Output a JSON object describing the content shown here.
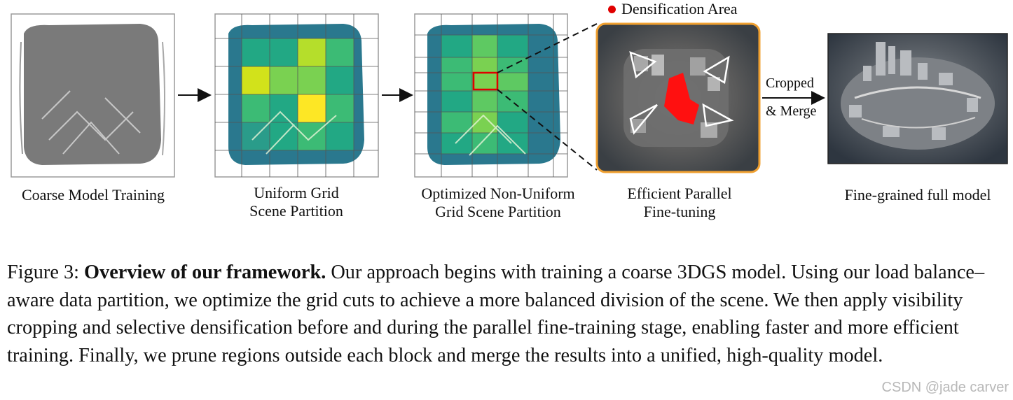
{
  "figure": {
    "legend_label": "Densification Area",
    "legend_color": "#e00000",
    "panels": [
      {
        "caption_lines": [
          "Coarse Model Training"
        ]
      },
      {
        "caption_lines": [
          "Uniform Grid",
          "Scene Partition"
        ]
      },
      {
        "caption_lines": [
          "Optimized Non-Uniform",
          "Grid Scene Partition"
        ]
      },
      {
        "caption_lines": [
          "Efficient Parallel",
          "Fine-tuning"
        ]
      },
      {
        "caption_lines": [
          "Fine-grained full model"
        ]
      }
    ],
    "merge_arrow_label_lines": [
      "Cropped",
      "& Merge"
    ],
    "colors": {
      "coarse_gray": "#7a7a7a",
      "viridis_dark": "#2a788e",
      "viridis_teal": "#22a884",
      "viridis_green": "#7ad151",
      "viridis_yellow": "#fde725",
      "highlight_box": "#e00000",
      "finetune_border": "#f0a030"
    }
  },
  "caption": {
    "label": "Figure 3:",
    "title": "Overview of our framework.",
    "body": "Our approach begins with training a coarse 3DGS model. Using our load balance–aware data partition, we optimize the grid cuts to achieve a more balanced division of the scene. We then apply visibility cropping and selective densification before and during the parallel fine-training stage, enabling faster and more efficient training. Finally, we prune regions outside each block and merge the results into a unified, high-quality model."
  },
  "watermark": "CSDN @jade carver"
}
